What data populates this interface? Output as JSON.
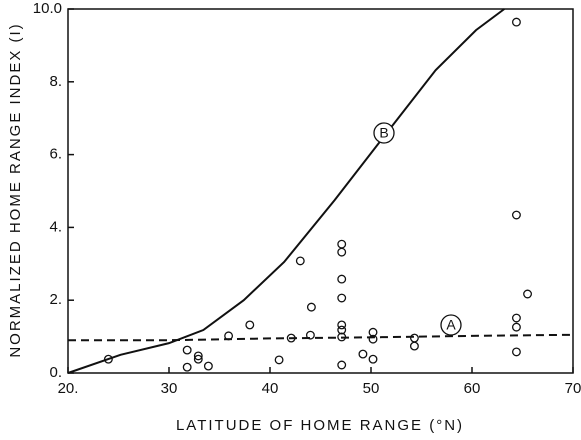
{
  "chart_data": {
    "type": "scatter",
    "xlabel": "LATITUDE OF HOME RANGE (°N)",
    "ylabel": "NORMALIZED HOME RANGE INDEX (I)",
    "xlim": [
      20,
      70
    ],
    "xticks": [
      {
        "value": 20,
        "label": "20."
      },
      30,
      40,
      50,
      60,
      70
    ],
    "ylim": [
      0,
      10
    ],
    "yticks": [
      {
        "value": 0,
        "label": "0."
      },
      {
        "value": 2,
        "label": "2."
      },
      {
        "value": 4,
        "label": "4."
      },
      {
        "value": 6,
        "label": "6."
      },
      {
        "value": 8,
        "label": "8."
      },
      {
        "value": 10,
        "label": "10.0"
      }
    ],
    "points": {
      "x": [
        24,
        31.8,
        31.8,
        32.9,
        32.9,
        33.9,
        35.9,
        38,
        40.9,
        42.1,
        43,
        44.1,
        44,
        47.1,
        47.1,
        47.1,
        47.1,
        47.1,
        47.1,
        47.1,
        47.1,
        49.2,
        50.2,
        50.2,
        50.2,
        54.3,
        54.3,
        64.4,
        64.4,
        64.4,
        64.4,
        64.4,
        65.5
      ],
      "values": [
        0.38,
        0.63,
        0.16,
        0.47,
        0.38,
        0.19,
        1.02,
        1.32,
        0.36,
        0.96,
        3.08,
        1.81,
        1.04,
        3.54,
        3.32,
        2.58,
        2.06,
        1.32,
        1.18,
        0.99,
        0.22,
        0.52,
        1.12,
        0.93,
        0.38,
        0.96,
        0.74,
        9.64,
        4.34,
        1.51,
        1.26,
        0.58,
        2.17
      ]
    },
    "series": [
      {
        "name": "B",
        "dashed": false,
        "x": [
          20,
          25.2,
          30,
          33.4,
          37.4,
          41.4,
          46.4,
          51.4,
          56.4,
          60.4,
          63.2
        ],
        "values": [
          0,
          0.5,
          0.82,
          1.18,
          2.0,
          3.05,
          4.75,
          6.54,
          8.32,
          9.42,
          10
        ]
      },
      {
        "name": "A",
        "dashed": true,
        "x": [
          20,
          30,
          40,
          50,
          60,
          70
        ],
        "values": [
          0.9,
          0.9,
          0.95,
          0.98,
          1.02,
          1.05
        ]
      }
    ]
  }
}
